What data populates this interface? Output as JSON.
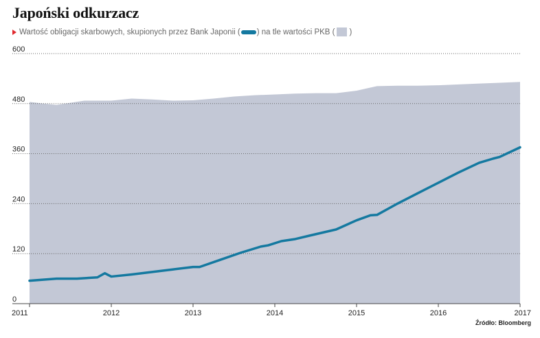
{
  "title": "Japoński odkurzacz",
  "subtitle": {
    "part1": "Wartość obligacji skarbowych, skupionych przez Bank Japonii (",
    "part2": ") na tle wartości PKB (",
    "part3": ")"
  },
  "source": "Źródło: Bloomberg",
  "colors": {
    "line": "#1479a0",
    "area": "#c3c8d6",
    "marker": "#e0282d",
    "grid": "#666666"
  },
  "chart_data": {
    "type": "area",
    "xlim": [
      2011,
      2017
    ],
    "ylim": [
      0,
      600
    ],
    "yticks": [
      "0",
      "120",
      "240",
      "360",
      "480",
      "600"
    ],
    "xticks": [
      "2011",
      "2012",
      "2013",
      "2014",
      "2015",
      "2016",
      "2017"
    ],
    "grid": true,
    "series": [
      {
        "kind": "area",
        "x": [
          2011.0,
          2011.17,
          2011.33,
          2011.5,
          2011.67,
          2011.83,
          2012.0,
          2012.25,
          2012.5,
          2012.75,
          2013.0,
          2013.25,
          2013.5,
          2013.75,
          2014.0,
          2014.25,
          2014.5,
          2014.75,
          2015.0,
          2015.25,
          2015.5,
          2015.75,
          2016.0,
          2016.25,
          2016.5,
          2016.75,
          2017.0
        ],
        "values": [
          484,
          480,
          477,
          482,
          487,
          487,
          487,
          492,
          490,
          487,
          488,
          492,
          497,
          500,
          502,
          504,
          505,
          505,
          511,
          522,
          523,
          523,
          524,
          526,
          528,
          530,
          532
        ]
      },
      {
        "kind": "line",
        "x": [
          2011.0,
          2011.33,
          2011.58,
          2011.83,
          2011.92,
          2012.0,
          2012.25,
          2012.5,
          2012.75,
          2013.0,
          2013.08,
          2013.33,
          2013.58,
          2013.83,
          2013.92,
          2014.08,
          2014.25,
          2014.42,
          2014.75,
          2015.0,
          2015.17,
          2015.25,
          2015.5,
          2015.75,
          2016.0,
          2016.25,
          2016.5,
          2016.67,
          2016.75,
          2017.0
        ],
        "values": [
          55,
          60,
          60,
          63,
          73,
          65,
          70,
          76,
          82,
          88,
          88,
          105,
          122,
          137,
          140,
          150,
          155,
          163,
          178,
          200,
          212,
          213,
          240,
          265,
          290,
          315,
          338,
          348,
          352,
          375
        ]
      }
    ]
  }
}
